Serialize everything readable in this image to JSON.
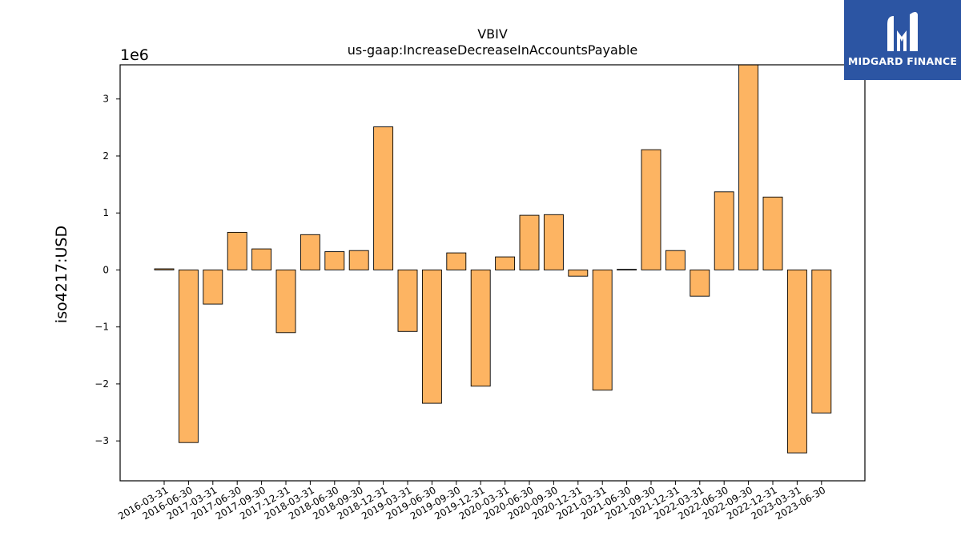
{
  "chart_data": {
    "type": "bar",
    "title": "VBIV",
    "subtitle": "us-gaap:IncreaseDecreaseInAccountsPayable",
    "xlabel": "",
    "ylabel": "iso4217:USD",
    "y_scale_label": "1e6",
    "ylim": [
      -3.7,
      3.6
    ],
    "yticks": [
      -3,
      -2,
      -1,
      0,
      1,
      2,
      3
    ],
    "ytick_labels": [
      "−3",
      "−2",
      "−1",
      "0",
      "1",
      "2",
      "3"
    ],
    "grid": false,
    "bar_color": "#fdb462",
    "bar_edge_color": "#000000",
    "categories": [
      "2016-03-31",
      "2016-06-30",
      "2017-03-31",
      "2017-06-30",
      "2017-09-30",
      "2017-12-31",
      "2018-03-31",
      "2018-06-30",
      "2018-09-30",
      "2018-12-31",
      "2019-03-31",
      "2019-06-30",
      "2019-09-30",
      "2019-12-31",
      "2020-03-31",
      "2020-06-30",
      "2020-09-30",
      "2020-12-31",
      "2021-03-31",
      "2021-06-30",
      "2021-09-30",
      "2021-12-31",
      "2022-03-31",
      "2022-06-30",
      "2022-09-30",
      "2022-12-31",
      "2023-03-31",
      "2023-06-30"
    ],
    "values": [
      0.02,
      -3.03,
      -0.6,
      0.66,
      0.37,
      -1.1,
      0.62,
      0.32,
      0.34,
      2.51,
      -1.08,
      -2.34,
      0.3,
      -2.04,
      0.23,
      0.96,
      0.97,
      -0.11,
      -2.11,
      0.01,
      2.11,
      0.34,
      -0.46,
      1.37,
      3.66,
      1.28,
      -3.21,
      -2.51
    ]
  },
  "logo": {
    "text": "MIDGARD FINANCE",
    "color": "#2c55a3"
  }
}
